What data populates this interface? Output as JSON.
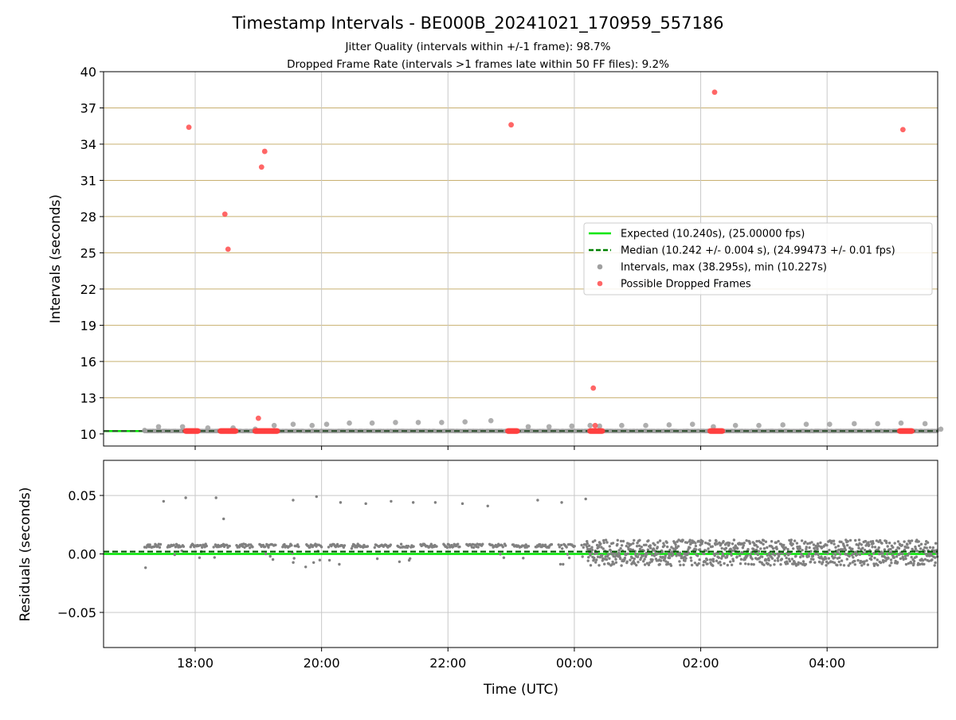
{
  "figure": {
    "title": "Timestamp Intervals - BE000B_20241021_170959_557186",
    "subtitle_line1": "Jitter Quality (intervals within +/-1 frame): 98.7%",
    "subtitle_line2": "Dropped Frame Rate (intervals >1 frames late within 50 FF files): 9.2%"
  },
  "colors": {
    "expected": "#00e600",
    "median": "#008000",
    "intervals": "#a0a0a0",
    "dropped": "#ff4040",
    "residual_points": "#808080",
    "hgrid_top": "#c8b070",
    "grid": "#c8c8c8"
  },
  "chart_data": [
    {
      "type": "scatter",
      "xlabel": "",
      "ylabel": "Intervals (seconds)",
      "ylim": [
        9.0,
        40.0
      ],
      "yticks": [
        10,
        13,
        16,
        19,
        22,
        25,
        28,
        31,
        34,
        37,
        40
      ],
      "grid": true,
      "legend_position": "center-right",
      "lines": [
        {
          "name": "Expected (10.240s), (25.00000 fps)",
          "y": 10.24,
          "style": "solid"
        },
        {
          "name": "Median (10.242 +/- 0.004 s), (24.99473 +/- 0.01 fps)",
          "y": 10.242,
          "style": "dashed"
        }
      ],
      "series": [
        {
          "name": "Intervals, max (38.295s), min (10.227s)",
          "x_hours": [
            17.2,
            17.42,
            17.8,
            18.2,
            18.6,
            18.95,
            19.25,
            19.55,
            19.85,
            20.08,
            20.44,
            20.8,
            21.17,
            21.53,
            21.9,
            22.27,
            22.68,
            23.27,
            23.6,
            23.96,
            24.25,
            24.4,
            24.75,
            25.13,
            25.5,
            25.87,
            26.2,
            26.55,
            26.92,
            27.3,
            27.67,
            28.04,
            28.43,
            28.8,
            29.17,
            29.55,
            29.8
          ],
          "values": [
            10.3,
            10.6,
            10.6,
            10.5,
            10.5,
            10.4,
            10.7,
            10.8,
            10.7,
            10.8,
            10.9,
            10.9,
            10.95,
            10.95,
            10.95,
            11.0,
            11.1,
            10.6,
            10.6,
            10.65,
            10.7,
            10.65,
            10.7,
            10.7,
            10.75,
            10.8,
            10.6,
            10.7,
            10.7,
            10.75,
            10.8,
            10.8,
            10.85,
            10.85,
            10.9,
            10.85,
            10.4
          ]
        },
        {
          "name": "Possible Dropped Frames",
          "x_hours": [
            17.9,
            18.47,
            18.52,
            19.0,
            19.05,
            19.1,
            23.0,
            24.3,
            24.33,
            26.22,
            29.2
          ],
          "values": [
            35.4,
            28.2,
            25.3,
            11.3,
            32.1,
            33.4,
            35.6,
            13.8,
            10.7,
            38.3,
            35.2
          ],
          "clusters_at_10_24": [
            [
              17.85,
              18.05
            ],
            [
              18.4,
              18.65
            ],
            [
              18.95,
              19.3
            ],
            [
              22.95,
              23.1
            ],
            [
              24.25,
              24.45
            ],
            [
              26.15,
              26.35
            ],
            [
              29.15,
              29.35
            ]
          ]
        }
      ]
    },
    {
      "type": "scatter",
      "xlabel": "Time (UTC)",
      "ylabel": "Residuals (seconds)",
      "xlim_hours": [
        16.55,
        29.75
      ],
      "xticks": [
        "18:00",
        "20:00",
        "22:00",
        "00:00",
        "02:00",
        "04:00"
      ],
      "xtick_hours": [
        18,
        20,
        22,
        24,
        26,
        28
      ],
      "ylim": [
        -0.08,
        0.08
      ],
      "yticks": [
        "0.05",
        "0.00",
        "−0.05"
      ],
      "ytick_values": [
        0.05,
        0.0,
        -0.05
      ],
      "grid": true,
      "lines": [
        {
          "name": "expected",
          "y": 0.0,
          "style": "solid"
        },
        {
          "name": "median",
          "y": 0.002,
          "style": "dashed"
        }
      ],
      "outliers": {
        "x_hours": [
          17.5,
          17.85,
          18.33,
          18.45,
          19.55,
          19.92,
          20.3,
          20.7,
          21.1,
          21.45,
          21.8,
          22.23,
          22.63,
          23.42,
          23.8,
          24.18
        ],
        "values": [
          0.045,
          0.048,
          0.048,
          0.03,
          0.046,
          0.049,
          0.044,
          0.043,
          0.045,
          0.044,
          0.044,
          0.043,
          0.041,
          0.046,
          0.044,
          0.047
        ]
      },
      "band": {
        "segment1_hours": [
          17.2,
          24.2
        ],
        "segment1_range": [
          -0.012,
          0.009
        ],
        "segment2_hours": [
          24.2,
          29.75
        ],
        "segment2_range": [
          -0.01,
          0.012
        ]
      }
    }
  ]
}
